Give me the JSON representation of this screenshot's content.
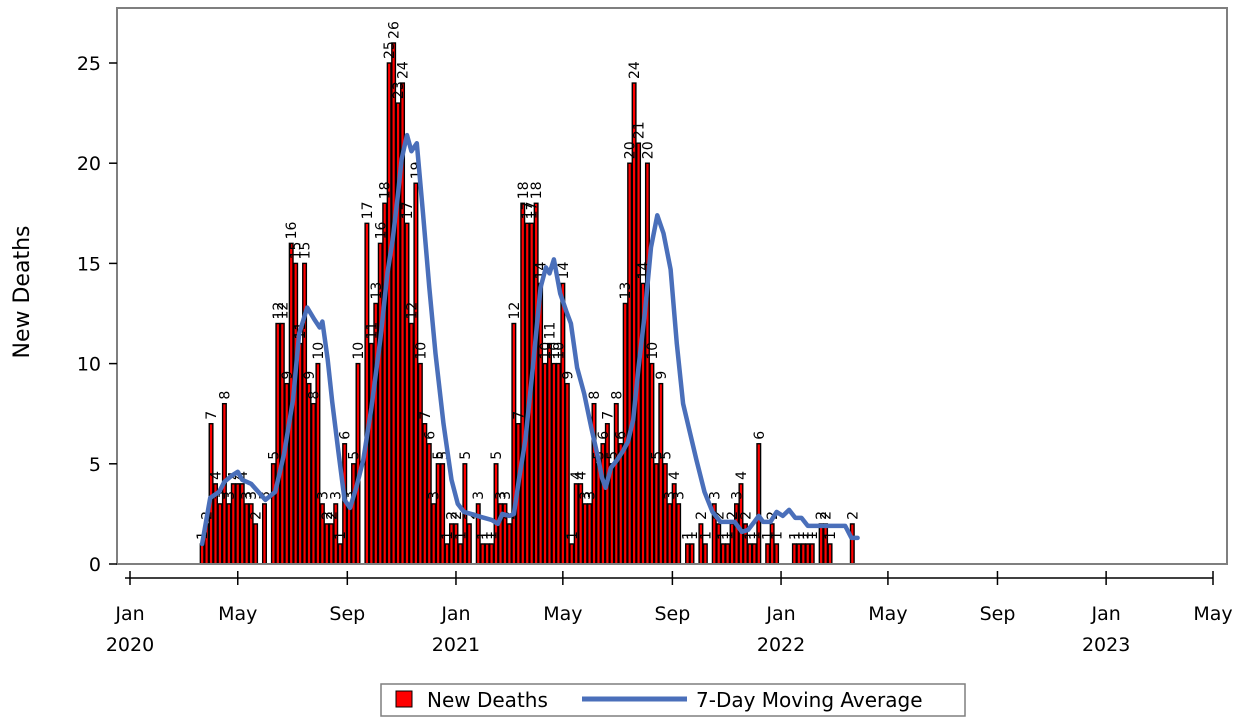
{
  "chart_data": {
    "type": "bar",
    "ylabel": "New Deaths",
    "xlabel": "",
    "ylim": [
      0,
      27
    ],
    "yticks": [
      0,
      5,
      10,
      15,
      20,
      25
    ],
    "xlim": [
      "2020-01-01",
      "2023-05-01"
    ],
    "xticks": [
      {
        "date": "2020-01-01",
        "label": [
          "Jan",
          "2020"
        ]
      },
      {
        "date": "2020-05-01",
        "label": [
          "May"
        ]
      },
      {
        "date": "2020-09-01",
        "label": [
          "Sep"
        ]
      },
      {
        "date": "2021-01-01",
        "label": [
          "Jan",
          "2021"
        ]
      },
      {
        "date": "2021-05-01",
        "label": [
          "May"
        ]
      },
      {
        "date": "2021-09-01",
        "label": [
          "Sep"
        ]
      },
      {
        "date": "2022-01-01",
        "label": [
          "Jan",
          "2022"
        ]
      },
      {
        "date": "2022-05-01",
        "label": [
          "May"
        ]
      },
      {
        "date": "2022-09-01",
        "label": [
          "Sep"
        ]
      },
      {
        "date": "2023-01-01",
        "label": [
          "Jan",
          "2023"
        ]
      },
      {
        "date": "2023-05-01",
        "label": [
          "May"
        ]
      }
    ],
    "grid": false,
    "legend_position": "bottom-center",
    "series": [
      {
        "name": "New Deaths",
        "type": "bar",
        "color": "#ff0000",
        "edge_color": "#000000",
        "points": [
          [
            "2020-03-22",
            1
          ],
          [
            "2020-03-27",
            2
          ],
          [
            "2020-04-01",
            7
          ],
          [
            "2020-04-06",
            4
          ],
          [
            "2020-04-11",
            3
          ],
          [
            "2020-04-16",
            8
          ],
          [
            "2020-04-21",
            3
          ],
          [
            "2020-04-26",
            4
          ],
          [
            "2020-05-01",
            4
          ],
          [
            "2020-05-06",
            4
          ],
          [
            "2020-05-11",
            3
          ],
          [
            "2020-05-16",
            3
          ],
          [
            "2020-05-21",
            2
          ],
          [
            "2020-05-31",
            3
          ],
          [
            "2020-06-10",
            5
          ],
          [
            "2020-06-15",
            12
          ],
          [
            "2020-06-20",
            12
          ],
          [
            "2020-06-25",
            9
          ],
          [
            "2020-06-30",
            16
          ],
          [
            "2020-07-05",
            15
          ],
          [
            "2020-07-10",
            11
          ],
          [
            "2020-07-15",
            15
          ],
          [
            "2020-07-20",
            9
          ],
          [
            "2020-07-25",
            8
          ],
          [
            "2020-07-30",
            10
          ],
          [
            "2020-08-04",
            3
          ],
          [
            "2020-08-09",
            2
          ],
          [
            "2020-08-14",
            2
          ],
          [
            "2020-08-19",
            3
          ],
          [
            "2020-08-24",
            1
          ],
          [
            "2020-08-29",
            6
          ],
          [
            "2020-09-03",
            3
          ],
          [
            "2020-09-08",
            5
          ],
          [
            "2020-09-13",
            10
          ],
          [
            "2020-09-23",
            17
          ],
          [
            "2020-09-28",
            11
          ],
          [
            "2020-10-03",
            13
          ],
          [
            "2020-10-08",
            16
          ],
          [
            "2020-10-13",
            18
          ],
          [
            "2020-10-18",
            25
          ],
          [
            "2020-10-23",
            26
          ],
          [
            "2020-10-28",
            23
          ],
          [
            "2020-11-02",
            24
          ],
          [
            "2020-11-07",
            17
          ],
          [
            "2020-11-12",
            12
          ],
          [
            "2020-11-17",
            19
          ],
          [
            "2020-11-22",
            10
          ],
          [
            "2020-11-27",
            7
          ],
          [
            "2020-12-02",
            6
          ],
          [
            "2020-12-07",
            3
          ],
          [
            "2020-12-12",
            5
          ],
          [
            "2020-12-17",
            5
          ],
          [
            "2020-12-22",
            1
          ],
          [
            "2020-12-27",
            2
          ],
          [
            "2021-01-01",
            2
          ],
          [
            "2021-01-06",
            1
          ],
          [
            "2021-01-11",
            5
          ],
          [
            "2021-01-16",
            2
          ],
          [
            "2021-01-26",
            3
          ],
          [
            "2021-01-31",
            1
          ],
          [
            "2021-02-05",
            1
          ],
          [
            "2021-02-10",
            1
          ],
          [
            "2021-02-15",
            5
          ],
          [
            "2021-02-20",
            3
          ],
          [
            "2021-02-25",
            3
          ],
          [
            "2021-03-02",
            2
          ],
          [
            "2021-03-07",
            12
          ],
          [
            "2021-03-12",
            7
          ],
          [
            "2021-03-17",
            18
          ],
          [
            "2021-03-22",
            17
          ],
          [
            "2021-03-27",
            17
          ],
          [
            "2021-04-01",
            18
          ],
          [
            "2021-04-06",
            14
          ],
          [
            "2021-04-11",
            10
          ],
          [
            "2021-04-16",
            11
          ],
          [
            "2021-04-21",
            10
          ],
          [
            "2021-04-26",
            10
          ],
          [
            "2021-05-01",
            14
          ],
          [
            "2021-05-06",
            9
          ],
          [
            "2021-05-11",
            1
          ],
          [
            "2021-05-16",
            4
          ],
          [
            "2021-05-21",
            4
          ],
          [
            "2021-05-26",
            3
          ],
          [
            "2021-05-31",
            3
          ],
          [
            "2021-06-05",
            8
          ],
          [
            "2021-06-10",
            5
          ],
          [
            "2021-06-15",
            6
          ],
          [
            "2021-06-20",
            7
          ],
          [
            "2021-06-25",
            5
          ],
          [
            "2021-06-30",
            8
          ],
          [
            "2021-07-05",
            6
          ],
          [
            "2021-07-10",
            13
          ],
          [
            "2021-07-15",
            20
          ],
          [
            "2021-07-20",
            24
          ],
          [
            "2021-07-25",
            21
          ],
          [
            "2021-07-30",
            14
          ],
          [
            "2021-08-04",
            20
          ],
          [
            "2021-08-09",
            10
          ],
          [
            "2021-08-14",
            5
          ],
          [
            "2021-08-19",
            9
          ],
          [
            "2021-08-24",
            5
          ],
          [
            "2021-08-29",
            3
          ],
          [
            "2021-09-03",
            4
          ],
          [
            "2021-09-08",
            3
          ],
          [
            "2021-09-18",
            1
          ],
          [
            "2021-09-23",
            1
          ],
          [
            "2021-10-03",
            2
          ],
          [
            "2021-10-08",
            1
          ],
          [
            "2021-10-18",
            3
          ],
          [
            "2021-10-23",
            2
          ],
          [
            "2021-10-28",
            1
          ],
          [
            "2021-11-02",
            1
          ],
          [
            "2021-11-07",
            2
          ],
          [
            "2021-11-12",
            3
          ],
          [
            "2021-11-17",
            4
          ],
          [
            "2021-11-22",
            2
          ],
          [
            "2021-11-27",
            1
          ],
          [
            "2021-12-02",
            1
          ],
          [
            "2021-12-07",
            6
          ],
          [
            "2021-12-17",
            1
          ],
          [
            "2021-12-22",
            2
          ],
          [
            "2021-12-27",
            1
          ],
          [
            "2022-01-16",
            1
          ],
          [
            "2022-01-21",
            1
          ],
          [
            "2022-01-26",
            1
          ],
          [
            "2022-01-31",
            1
          ],
          [
            "2022-02-05",
            1
          ],
          [
            "2022-02-15",
            2
          ],
          [
            "2022-02-20",
            2
          ],
          [
            "2022-02-25",
            1
          ],
          [
            "2022-03-22",
            2
          ]
        ]
      },
      {
        "name": "7-Day Moving Average",
        "type": "line",
        "color": "#4a6fba",
        "points": [
          [
            "2020-03-22",
            1.0
          ],
          [
            "2020-03-31",
            3.3
          ],
          [
            "2020-04-10",
            3.6
          ],
          [
            "2020-04-16",
            4.1
          ],
          [
            "2020-04-24",
            4.4
          ],
          [
            "2020-05-01",
            4.6
          ],
          [
            "2020-05-06",
            4.2
          ],
          [
            "2020-05-16",
            4.0
          ],
          [
            "2020-05-24",
            3.6
          ],
          [
            "2020-06-01",
            3.2
          ],
          [
            "2020-06-12",
            3.6
          ],
          [
            "2020-06-22",
            5.5
          ],
          [
            "2020-07-02",
            8.2
          ],
          [
            "2020-07-09",
            11.5
          ],
          [
            "2020-07-18",
            12.8
          ],
          [
            "2020-07-26",
            12.2
          ],
          [
            "2020-08-01",
            11.8
          ],
          [
            "2020-08-04",
            12.1
          ],
          [
            "2020-08-10",
            10.2
          ],
          [
            "2020-08-15",
            8.1
          ],
          [
            "2020-08-22",
            5.6
          ],
          [
            "2020-08-29",
            3.2
          ],
          [
            "2020-09-04",
            2.8
          ],
          [
            "2020-09-11",
            3.8
          ],
          [
            "2020-09-19",
            5.2
          ],
          [
            "2020-09-28",
            7.8
          ],
          [
            "2020-10-08",
            11.2
          ],
          [
            "2020-10-16",
            14.5
          ],
          [
            "2020-10-22",
            16.2
          ],
          [
            "2020-10-28",
            18.5
          ],
          [
            "2020-11-01",
            20.2
          ],
          [
            "2020-11-07",
            21.4
          ],
          [
            "2020-11-12",
            20.6
          ],
          [
            "2020-11-18",
            21.0
          ],
          [
            "2020-11-25",
            17.5
          ],
          [
            "2020-12-02",
            13.8
          ],
          [
            "2020-12-09",
            10.5
          ],
          [
            "2020-12-18",
            7.0
          ],
          [
            "2020-12-27",
            4.2
          ],
          [
            "2021-01-03",
            3.0
          ],
          [
            "2021-01-10",
            2.6
          ],
          [
            "2021-01-18",
            2.5
          ],
          [
            "2021-01-25",
            2.4
          ],
          [
            "2021-02-02",
            2.3
          ],
          [
            "2021-02-10",
            2.2
          ],
          [
            "2021-02-17",
            2.0
          ],
          [
            "2021-02-22",
            2.5
          ],
          [
            "2021-03-02",
            2.4
          ],
          [
            "2021-03-07",
            2.5
          ],
          [
            "2021-03-13",
            4.3
          ],
          [
            "2021-03-20",
            6.2
          ],
          [
            "2021-03-28",
            9.7
          ],
          [
            "2021-04-06",
            13.8
          ],
          [
            "2021-04-12",
            14.8
          ],
          [
            "2021-04-16",
            14.5
          ],
          [
            "2021-04-21",
            15.2
          ],
          [
            "2021-04-28",
            13.5
          ],
          [
            "2021-05-05",
            12.6
          ],
          [
            "2021-05-10",
            12.0
          ],
          [
            "2021-05-17",
            9.8
          ],
          [
            "2021-05-25",
            8.5
          ],
          [
            "2021-06-02",
            6.8
          ],
          [
            "2021-06-10",
            5.2
          ],
          [
            "2021-06-14",
            4.3
          ],
          [
            "2021-06-18",
            3.8
          ],
          [
            "2021-06-24",
            4.8
          ],
          [
            "2021-07-01",
            5.2
          ],
          [
            "2021-07-07",
            5.6
          ],
          [
            "2021-07-13",
            6.1
          ],
          [
            "2021-07-19",
            7.2
          ],
          [
            "2021-07-25",
            9.8
          ],
          [
            "2021-08-01",
            12.5
          ],
          [
            "2021-08-08",
            15.8
          ],
          [
            "2021-08-15",
            17.4
          ],
          [
            "2021-08-22",
            16.5
          ],
          [
            "2021-08-30",
            14.7
          ],
          [
            "2021-09-06",
            11.0
          ],
          [
            "2021-09-13",
            8.0
          ],
          [
            "2021-09-21",
            6.5
          ],
          [
            "2021-09-28",
            5.2
          ],
          [
            "2021-10-07",
            3.6
          ],
          [
            "2021-10-16",
            2.6
          ],
          [
            "2021-10-25",
            2.1
          ],
          [
            "2021-11-03",
            2.1
          ],
          [
            "2021-11-10",
            2.1
          ],
          [
            "2021-11-18",
            1.6
          ],
          [
            "2021-11-25",
            1.7
          ],
          [
            "2021-12-02",
            2.1
          ],
          [
            "2021-12-07",
            2.4
          ],
          [
            "2021-12-12",
            2.1
          ],
          [
            "2021-12-20",
            2.1
          ],
          [
            "2021-12-27",
            2.6
          ],
          [
            "2022-01-03",
            2.4
          ],
          [
            "2022-01-10",
            2.7
          ],
          [
            "2022-01-17",
            2.3
          ],
          [
            "2022-01-24",
            2.3
          ],
          [
            "2022-01-31",
            1.9
          ],
          [
            "2022-02-08",
            1.9
          ],
          [
            "2022-02-16",
            1.9
          ],
          [
            "2022-02-22",
            1.9
          ],
          [
            "2022-03-01",
            1.9
          ],
          [
            "2022-03-08",
            1.9
          ],
          [
            "2022-03-14",
            1.9
          ],
          [
            "2022-03-21",
            1.3
          ],
          [
            "2022-03-28",
            1.3
          ]
        ]
      }
    ]
  }
}
